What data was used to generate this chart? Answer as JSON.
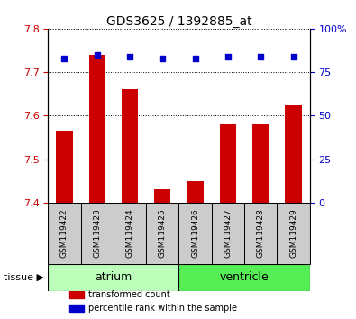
{
  "title": "GDS3625 / 1392885_at",
  "samples": [
    "GSM119422",
    "GSM119423",
    "GSM119424",
    "GSM119425",
    "GSM119426",
    "GSM119427",
    "GSM119428",
    "GSM119429"
  ],
  "transformed_counts": [
    7.565,
    7.74,
    7.66,
    7.43,
    7.45,
    7.58,
    7.58,
    7.625
  ],
  "percentile_ranks": [
    83,
    85,
    84,
    83,
    83,
    84,
    84,
    84
  ],
  "ylim_left": [
    7.4,
    7.8
  ],
  "ylim_right": [
    0,
    100
  ],
  "yticks_left": [
    7.4,
    7.5,
    7.6,
    7.7,
    7.8
  ],
  "yticks_right": [
    0,
    25,
    50,
    75,
    100
  ],
  "tissue_groups": [
    {
      "label": "atrium",
      "start": 0,
      "end": 4,
      "color": "#bbffbb"
    },
    {
      "label": "ventricle",
      "start": 4,
      "end": 8,
      "color": "#55ee55"
    }
  ],
  "bar_color": "#cc0000",
  "dot_color": "#0000cc",
  "bar_width": 0.5,
  "grid_color": "#000000",
  "bg_color": "#ffffff",
  "sample_box_color": "#cccccc",
  "left_tick_color": "#cc0000",
  "right_tick_color": "#0000cc",
  "legend_items": [
    {
      "label": "transformed count",
      "color": "#cc0000"
    },
    {
      "label": "percentile rank within the sample",
      "color": "#0000cc"
    }
  ],
  "tissue_label": "tissue ▶"
}
